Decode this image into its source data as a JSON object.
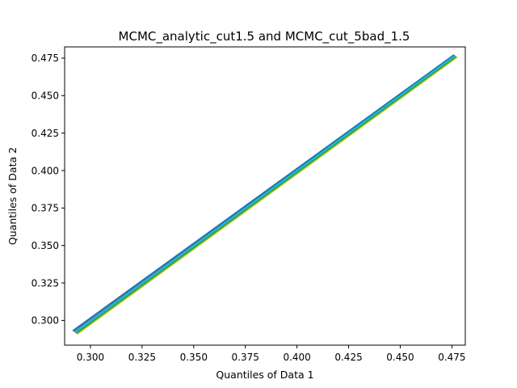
{
  "chart_data": {
    "type": "line",
    "title": "MCMC_analytic_cut1.5 and MCMC_cut_5bad_1.5",
    "xlabel": "Quantiles of Data 1",
    "ylabel": "Quantiles of Data 2",
    "xlim": [
      0.2875,
      0.4815
    ],
    "ylim": [
      0.2835,
      0.4825
    ],
    "xticks": [
      0.3,
      0.325,
      0.35,
      0.375,
      0.4,
      0.425,
      0.45,
      0.475
    ],
    "xtick_labels": [
      "0.300",
      "0.325",
      "0.350",
      "0.375",
      "0.400",
      "0.425",
      "0.450",
      "0.475"
    ],
    "yticks": [
      0.3,
      0.325,
      0.35,
      0.375,
      0.4,
      0.425,
      0.45,
      0.475
    ],
    "ytick_labels": [
      "0.300",
      "0.325",
      "0.350",
      "0.375",
      "0.400",
      "0.425",
      "0.450",
      "0.475"
    ],
    "grid": false,
    "legend": "none",
    "series": [
      {
        "color": "#bcbd22",
        "x": [
          0.2935,
          0.4775
        ],
        "y": [
          0.291,
          0.4758
        ]
      },
      {
        "color": "#2ca02c",
        "x": [
          0.293,
          0.477
        ],
        "y": [
          0.2915,
          0.4762
        ]
      },
      {
        "color": "#d62728",
        "x": [
          0.2925,
          0.4765
        ],
        "y": [
          0.2922,
          0.4768
        ]
      },
      {
        "color": "#9467bd",
        "x": [
          0.292,
          0.4765
        ],
        "y": [
          0.2925,
          0.4768
        ]
      },
      {
        "color": "#1f77b4",
        "x": [
          0.2915,
          0.476
        ],
        "y": [
          0.293,
          0.477
        ]
      },
      {
        "color": "#17becf",
        "x": [
          0.2925,
          0.4765
        ],
        "y": [
          0.292,
          0.4765
        ]
      }
    ]
  }
}
